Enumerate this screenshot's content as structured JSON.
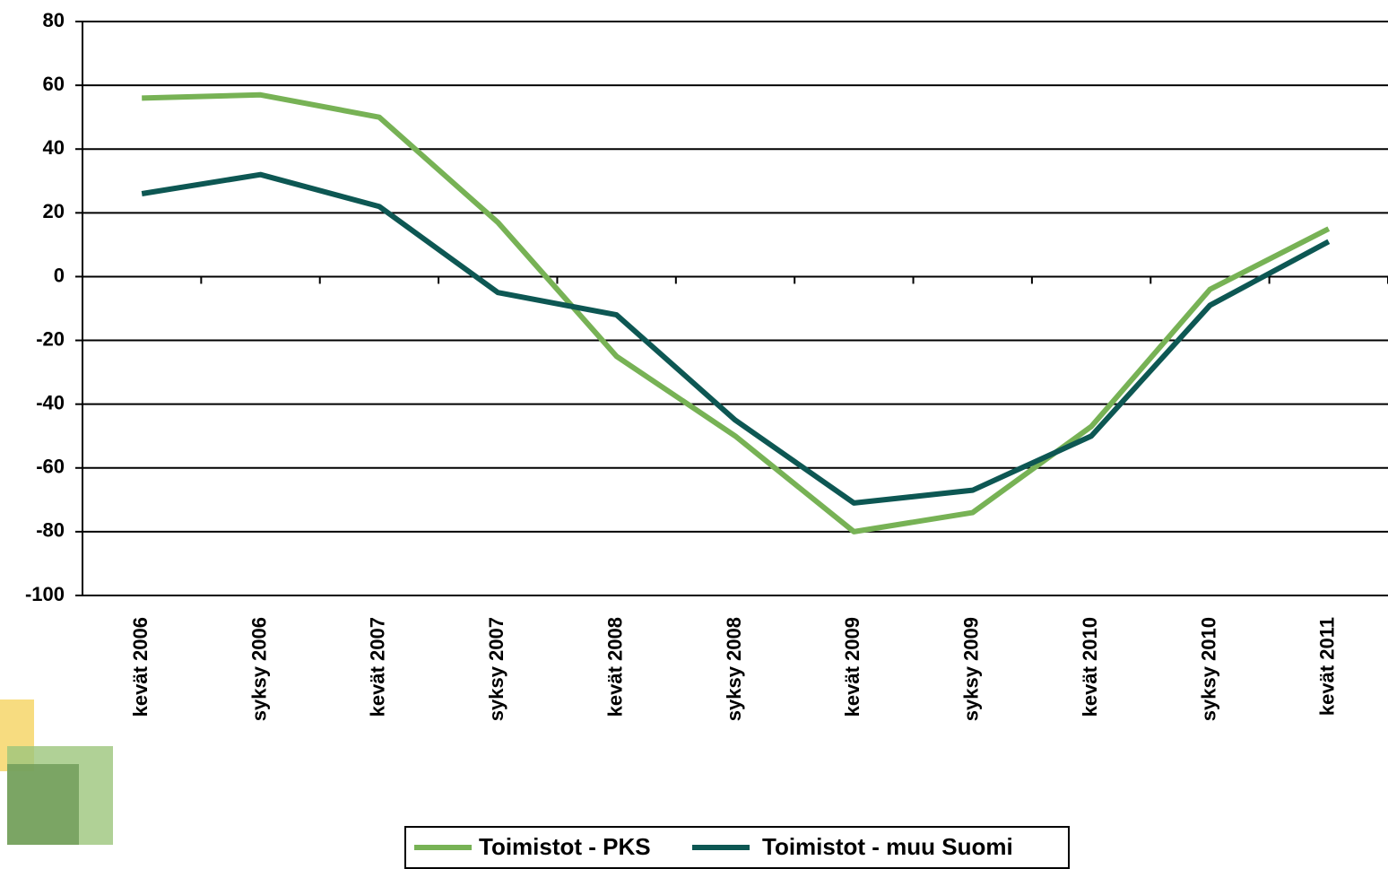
{
  "chart_data": {
    "type": "line",
    "categories": [
      "kevät 2006",
      "syksy 2006",
      "kevät 2007",
      "syksy 2007",
      "kevät 2008",
      "syksy 2008",
      "kevät 2009",
      "syksy 2009",
      "kevät 2010",
      "syksy 2010",
      "kevät 2011"
    ],
    "series": [
      {
        "name": "Toimistot - PKS",
        "color": "#77b255",
        "values": [
          56,
          57,
          50,
          17,
          -25,
          -50,
          -80,
          -74,
          -47,
          -4,
          15
        ]
      },
      {
        "name": "Toimistot - muu Suomi",
        "color": "#0d5753",
        "values": [
          26,
          32,
          22,
          -5,
          -12,
          -45,
          -71,
          -67,
          -50,
          -9,
          11
        ]
      }
    ],
    "ylim": [
      -100,
      80
    ],
    "yticks": [
      -100,
      -80,
      -60,
      -40,
      -20,
      0,
      20,
      40,
      60,
      80
    ],
    "grid": true,
    "legend": "bottom"
  }
}
